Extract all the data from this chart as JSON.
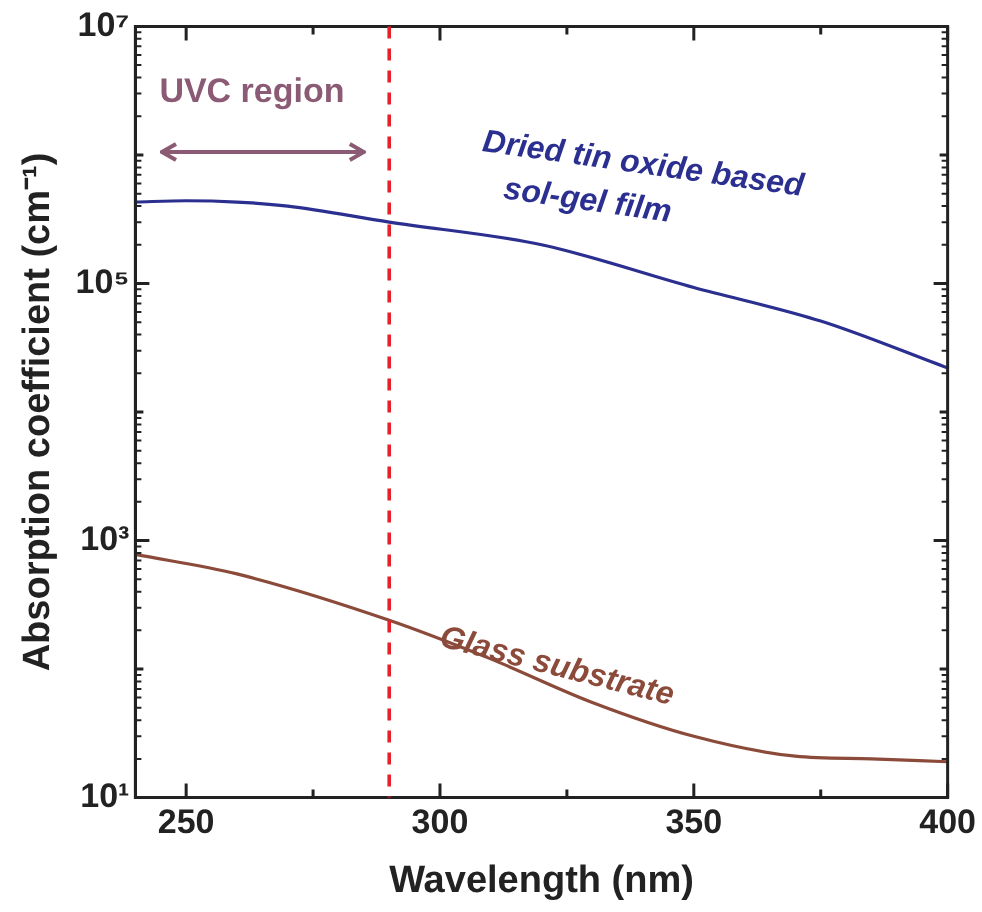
{
  "chart_data": {
    "type": "line",
    "xlabel": "Wavelength (nm)",
    "ylabel": "Absorption coefficient (cm⁻¹)",
    "xlim": [
      240,
      400
    ],
    "xticks": [
      250,
      {
        "value": 275,
        "label": null
      },
      300,
      {
        "value": 325,
        "label": null
      },
      350,
      {
        "value": 375,
        "label": null
      },
      400
    ],
    "ylim": [
      10,
      10000000
    ],
    "yticks": [
      {
        "value": 10,
        "label": "10¹"
      },
      {
        "value": 100,
        "label": null
      },
      {
        "value": 1000,
        "label": "10³"
      },
      {
        "value": 10000,
        "label": null
      },
      {
        "value": 100000,
        "label": "10⁵"
      },
      {
        "value": 1000000,
        "label": null
      },
      {
        "value": 10000000,
        "label": "10⁷"
      }
    ],
    "log": "y",
    "grid": false,
    "legend": false,
    "marker": "none",
    "line_style": "solid",
    "series": [
      {
        "name": "Dried tin oxide based sol-gel film",
        "color": "#2b2f8f",
        "x": [
          240,
          250,
          260,
          270,
          290,
          320,
          350,
          375,
          400
        ],
        "values": [
          430000,
          440000,
          430000,
          400000,
          300000,
          200000,
          93000,
          51000,
          22000
        ]
      },
      {
        "name": "Glass substrate",
        "color": "#8b4a3a",
        "x": [
          240,
          260,
          290,
          310,
          330,
          350,
          370,
          385,
          400
        ],
        "values": [
          780,
          550,
          240,
          120,
          55,
          30,
          21,
          20,
          19
        ]
      }
    ],
    "ref_lines": [
      {
        "axis": "x",
        "value": 290,
        "color": "#e8202a",
        "line_style": "dashed"
      }
    ],
    "annotations": [
      "UVC region"
    ]
  }
}
